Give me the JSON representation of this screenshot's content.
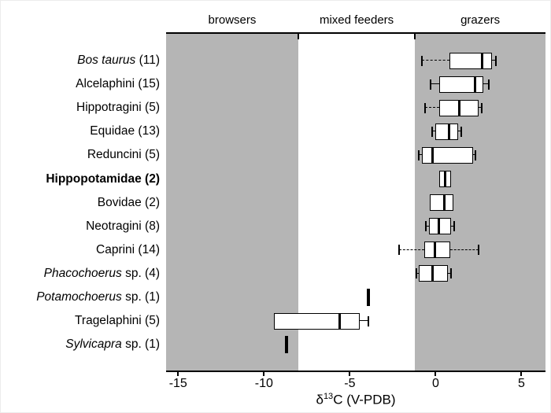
{
  "figure": {
    "x_axis_title": {
      "delta": "δ",
      "superscript": "13",
      "rest": "C (V-PDB)"
    }
  },
  "chart_data": {
    "type": "boxplot",
    "orientation": "horizontal",
    "title": "",
    "xlabel": "δ13C (V-PDB)",
    "xlim": [
      -15.7,
      6.4
    ],
    "x_ticks": [
      -15,
      -10,
      -5,
      0,
      5
    ],
    "colors": {
      "band_gray": "#b5b5b5",
      "box_fill": "#ffffff",
      "line": "#000000"
    },
    "diet_regions": [
      {
        "label": "browsers",
        "from": -15.7,
        "to": -8.0,
        "shaded": true
      },
      {
        "label": "mixed feeders",
        "from": -8.0,
        "to": -1.2,
        "shaded": false
      },
      {
        "label": "grazers",
        "from": -1.2,
        "to": 6.4,
        "shaded": true
      }
    ],
    "rows": [
      {
        "label_italic": "Bos taurus",
        "label_rest": " (11)",
        "bold": false,
        "type": "box",
        "lo": -0.8,
        "q1": 0.8,
        "median": 2.7,
        "q3": 3.3,
        "hi": 3.5,
        "lo_dashed": true,
        "hi_dashed": false
      },
      {
        "label_italic": "",
        "label_rest": "Alcelaphini (15)",
        "bold": false,
        "type": "box",
        "lo": -0.3,
        "q1": 0.2,
        "median": 2.3,
        "q3": 2.8,
        "hi": 3.1,
        "lo_dashed": false,
        "hi_dashed": false
      },
      {
        "label_italic": "",
        "label_rest": "Hippotragini (5)",
        "bold": false,
        "type": "box",
        "lo": -0.6,
        "q1": 0.2,
        "median": 1.4,
        "q3": 2.5,
        "hi": 2.7,
        "lo_dashed": true,
        "hi_dashed": false
      },
      {
        "label_italic": "",
        "label_rest": "Equidae (13)",
        "bold": false,
        "type": "box",
        "lo": -0.2,
        "q1": 0.0,
        "median": 0.8,
        "q3": 1.3,
        "hi": 1.5,
        "lo_dashed": false,
        "hi_dashed": false
      },
      {
        "label_italic": "",
        "label_rest": "Reduncini (5)",
        "bold": false,
        "type": "box",
        "lo": -1.0,
        "q1": -0.8,
        "median": -0.2,
        "q3": 2.2,
        "hi": 2.3,
        "lo_dashed": false,
        "hi_dashed": false
      },
      {
        "label_italic": "",
        "label_rest": "Hippopotamidae (2)",
        "bold": true,
        "type": "box",
        "lo": 0.2,
        "q1": 0.2,
        "median": 0.55,
        "q3": 0.9,
        "hi": 0.9,
        "lo_dashed": false,
        "hi_dashed": false
      },
      {
        "label_italic": "",
        "label_rest": "Bovidae (2)",
        "bold": false,
        "type": "box",
        "lo": -0.35,
        "q1": -0.35,
        "median": 0.5,
        "q3": 1.05,
        "hi": 1.05,
        "lo_dashed": false,
        "hi_dashed": false
      },
      {
        "label_italic": "",
        "label_rest": "Neotragini (8)",
        "bold": false,
        "type": "box",
        "lo": -0.55,
        "q1": -0.4,
        "median": 0.2,
        "q3": 0.9,
        "hi": 1.1,
        "lo_dashed": false,
        "hi_dashed": false
      },
      {
        "label_italic": "",
        "label_rest": "Caprini (14)",
        "bold": false,
        "type": "box",
        "lo": -2.15,
        "q1": -0.65,
        "median": -0.05,
        "q3": 0.85,
        "hi": 2.5,
        "lo_dashed": true,
        "hi_dashed": true
      },
      {
        "label_italic": "Phacochoerus",
        "label_rest": " sp. (4)",
        "bold": false,
        "type": "box",
        "lo": -1.1,
        "q1": -1.0,
        "median": -0.2,
        "q3": 0.7,
        "hi": 0.9,
        "lo_dashed": false,
        "hi_dashed": false
      },
      {
        "label_italic": "Potamochoerus",
        "label_rest": " sp. (1)",
        "bold": false,
        "type": "single",
        "value": -3.9
      },
      {
        "label_italic": "",
        "label_rest": "Tragelaphini (5)",
        "bold": false,
        "type": "box",
        "lo": -9.4,
        "q1": -9.4,
        "median": -5.6,
        "q3": -4.4,
        "hi": -3.9,
        "lo_dashed": false,
        "hi_dashed": false
      },
      {
        "label_italic": "Sylvicapra",
        "label_rest": " sp. (1)",
        "bold": false,
        "type": "single",
        "value": -8.7
      }
    ]
  }
}
